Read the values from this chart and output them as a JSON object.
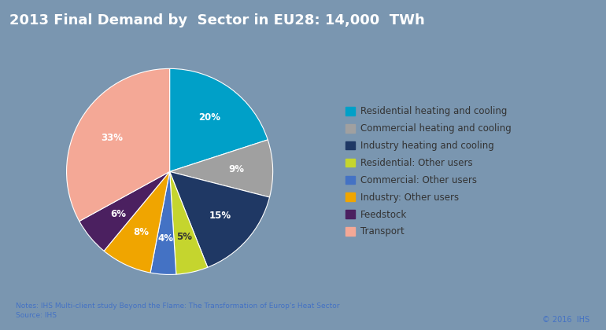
{
  "title": "2013 Final Demand by  Sector in EU28: 14,000  TWh",
  "title_fontsize": 13,
  "title_color": "#ffffff",
  "title_bg_color": "#6b8cae",
  "outer_bg_color": "#7a96b0",
  "chart_bg_color": "#ffffff",
  "labels": [
    "Residential heating and cooling",
    "Commercial heating and cooling",
    "Industry heating and cooling",
    "Residential: Other users",
    "Commercial: Other users",
    "Industry: Other users",
    "Feedstock",
    "Transport"
  ],
  "values": [
    20,
    9,
    15,
    5,
    4,
    8,
    6,
    33
  ],
  "colors": [
    "#00a0c8",
    "#a0a0a0",
    "#1f3864",
    "#c5d52e",
    "#4472c4",
    "#f0a500",
    "#4b2060",
    "#f4a896"
  ],
  "pct_labels": [
    "20%",
    "9%",
    "15%",
    "5%",
    "4%",
    "8%",
    "6%",
    "33%"
  ],
  "pct_colors": [
    "white",
    "white",
    "white",
    "white",
    "white",
    "white",
    "white",
    "white"
  ],
  "startangle": 90,
  "legend_text_color": "#333333",
  "footer_note": "Notes: IHS Multi-client study Beyond the Flame: The Transformation of Europ's Heat Sector\nSource: IHS",
  "footer_right": "© 2016  IHS",
  "footer_note_color": "#4472c4",
  "footer_right_color": "#4472c4"
}
